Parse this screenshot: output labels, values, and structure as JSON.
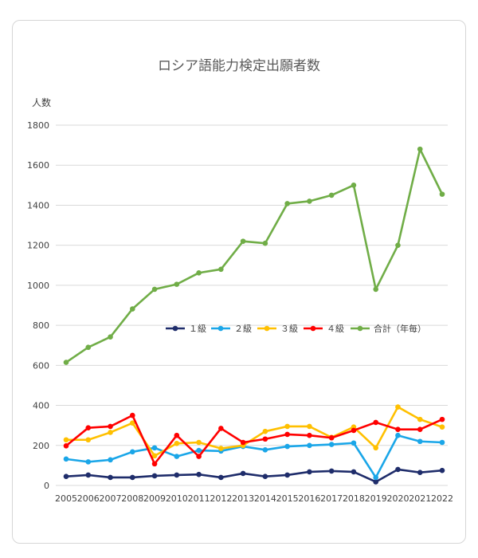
{
  "chart_data": {
    "type": "line",
    "title": "ロシア語能力検定出願者数",
    "ylabel": "人数",
    "xlabel": "",
    "ylim": [
      0,
      1800
    ],
    "yticks": [
      0,
      200,
      400,
      600,
      800,
      1000,
      1200,
      1400,
      1600,
      1800
    ],
    "grid": true,
    "legend_position": "center",
    "categories": [
      "2005",
      "2006",
      "2007",
      "2008",
      "2009",
      "2010",
      "2011",
      "2012",
      "2013",
      "2014",
      "2015",
      "2016",
      "2017",
      "2018",
      "2019",
      "2020",
      "2021",
      "2022"
    ],
    "series": [
      {
        "name": "１級",
        "color": "#1f2d6b",
        "values": [
          45,
          52,
          40,
          40,
          48,
          52,
          55,
          40,
          60,
          45,
          52,
          68,
          72,
          68,
          18,
          80,
          65,
          75
        ]
      },
      {
        "name": "２級",
        "color": "#1aa6e8",
        "values": [
          132,
          118,
          128,
          168,
          188,
          145,
          175,
          172,
          195,
          178,
          195,
          200,
          205,
          212,
          40,
          250,
          220,
          215
        ]
      },
      {
        "name": "３級",
        "color": "#ffc000",
        "values": [
          228,
          228,
          265,
          312,
          148,
          210,
          215,
          185,
          200,
          270,
          295,
          295,
          240,
          292,
          188,
          392,
          330,
          292
        ]
      },
      {
        "name": "４級",
        "color": "#ff0000",
        "values": [
          198,
          288,
          295,
          350,
          108,
          250,
          145,
          285,
          215,
          232,
          255,
          250,
          238,
          275,
          315,
          280,
          280,
          330
        ]
      },
      {
        "name": "合計（年毎）",
        "color": "#70ad47",
        "values": [
          615,
          690,
          742,
          882,
          980,
          1005,
          1062,
          1080,
          1220,
          1210,
          1408,
          1420,
          1450,
          1500,
          980,
          1200,
          1680,
          1455
        ]
      }
    ]
  }
}
